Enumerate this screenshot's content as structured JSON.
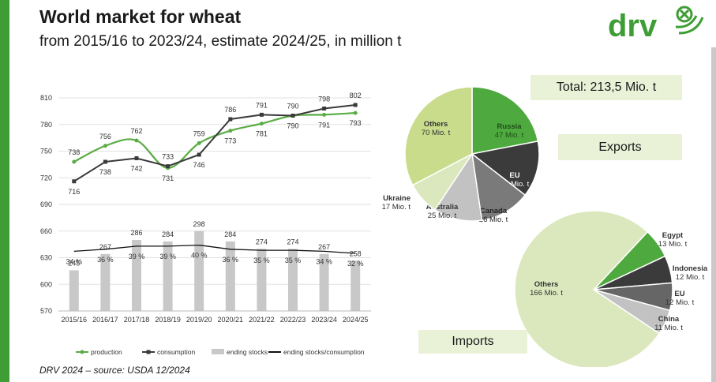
{
  "header": {
    "title": "World market for wheat",
    "subtitle": "from 2015/16 to 2023/24, estimate 2024/25, in million t"
  },
  "logo": {
    "text": "drv",
    "color": "#3f9d35"
  },
  "footer": {
    "source": "DRV 2024 – source: USDA 12/2024"
  },
  "colors": {
    "production": "#5aac44",
    "consumption": "#3a3a3a",
    "stocks": "#c8c8c8",
    "ratio": "#111111",
    "accent": "#3f9d35"
  },
  "chart_data": [
    {
      "type": "line",
      "categories": [
        "2015/16",
        "2016/17",
        "2017/18",
        "2018/19",
        "2019/20",
        "2020/21",
        "2021/22",
        "2022/23",
        "2023/24",
        "2024/25"
      ],
      "y_ticks": [
        "810",
        "780",
        "750",
        "720",
        "690",
        "660",
        "630",
        "600",
        "570"
      ],
      "ylim": [
        570,
        810
      ],
      "series": [
        {
          "name": "production",
          "type": "line",
          "values": [
            738,
            756,
            762,
            731,
            759,
            773,
            781,
            790,
            791,
            793
          ],
          "labels": [
            "738",
            "756",
            "762",
            "731",
            "759",
            "773",
            "781",
            "790",
            "791",
            "793"
          ]
        },
        {
          "name": "consumption",
          "type": "line",
          "values": [
            716,
            738,
            742,
            733,
            746,
            786,
            791,
            790,
            798,
            802
          ],
          "labels": [
            "716",
            "738",
            "742",
            "733",
            "746",
            "786",
            "791",
            "790",
            "798",
            "802"
          ]
        },
        {
          "name": "ending stocks",
          "type": "bar",
          "values": [
            245,
            267,
            286,
            284,
            298,
            284,
            274,
            274,
            267,
            258
          ],
          "labels": [
            "245",
            "267",
            "286",
            "284",
            "298",
            "284",
            "274",
            "274",
            "267",
            "258"
          ]
        },
        {
          "name": "ending stocks/consumption",
          "type": "line",
          "values": [
            34,
            36,
            39,
            39,
            40,
            36,
            35,
            35,
            34,
            32
          ],
          "labels": [
            "34 %",
            "36 %",
            "39 %",
            "39 %",
            "40 %",
            "36 %",
            "35 %",
            "35 %",
            "34 %",
            "32 %"
          ]
        }
      ],
      "legend_position": "bottom",
      "grid": "horizontal"
    },
    {
      "type": "pie",
      "title": "Exports",
      "total": "Total: 213,5 Mio. t",
      "slices": [
        {
          "name": "Russia",
          "value": 47,
          "label": "47 Mio. t",
          "color": "#4ea93e"
        },
        {
          "name": "EU",
          "value": 29,
          "label": "29 Mio. t",
          "color": "#3b3b3b"
        },
        {
          "name": "Canada",
          "value": 26,
          "label": "26 Mio. t",
          "color": "#7a7a7a"
        },
        {
          "name": "Australia",
          "value": 25,
          "label": "25 Mio. t",
          "color": "#c2c2c2"
        },
        {
          "name": "Ukraine",
          "value": 17,
          "label": "17 Mio. t",
          "color": "#dbe8bd"
        },
        {
          "name": "Others",
          "value": 70,
          "label": "70 Mio. t",
          "color": "#c9dc8c"
        }
      ]
    },
    {
      "type": "pie",
      "title": "Imports",
      "slices": [
        {
          "name": "Egypt",
          "value": 13,
          "label": "13 Mio. t",
          "color": "#4ea93e"
        },
        {
          "name": "Indonesia",
          "value": 12,
          "label": "12 Mio. t",
          "color": "#3b3b3b"
        },
        {
          "name": "EU",
          "value": 12,
          "label": "12 Mio. t",
          "color": "#666666"
        },
        {
          "name": "China",
          "value": 11,
          "label": "11 Mio. t",
          "color": "#c2c2c2"
        },
        {
          "name": "Others",
          "value": 166,
          "label": "166 Mio. t",
          "color": "#dbe8bd"
        }
      ]
    }
  ]
}
